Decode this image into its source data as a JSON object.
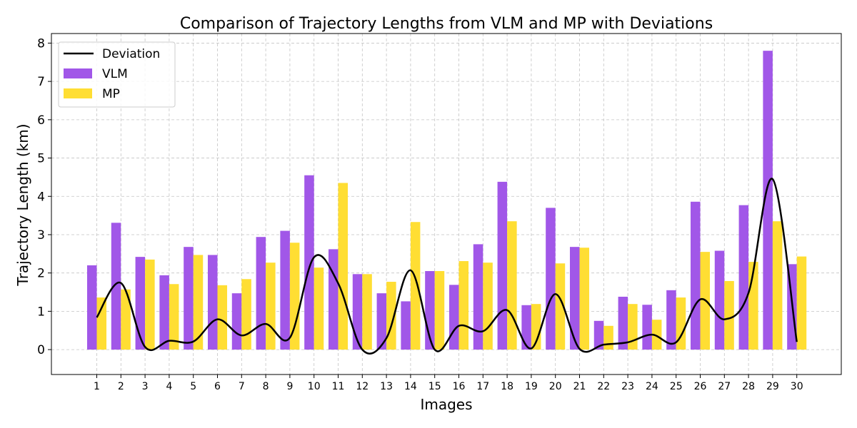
{
  "chart_data": {
    "type": "bar",
    "title": "Comparison of Trajectory Lengths from VLM and MP with Deviations",
    "xlabel": "Images",
    "ylabel": "Trajectory Length (km)",
    "categories": [
      "1",
      "2",
      "3",
      "4",
      "5",
      "6",
      "7",
      "8",
      "9",
      "10",
      "11",
      "12",
      "13",
      "14",
      "15",
      "16",
      "17",
      "18",
      "19",
      "20",
      "21",
      "22",
      "23",
      "24",
      "25",
      "26",
      "27",
      "28",
      "29",
      "30"
    ],
    "yticks": [
      "0",
      "1",
      "2",
      "3",
      "4",
      "5",
      "6",
      "7",
      "8"
    ],
    "ylim": [
      -0.65,
      8.25
    ],
    "grid": true,
    "legend_position": "top-left",
    "series": [
      {
        "name": "VLM",
        "kind": "bar",
        "color": "#a157e8",
        "values": [
          2.2,
          3.31,
          2.42,
          1.94,
          2.68,
          2.47,
          1.47,
          2.94,
          3.1,
          4.55,
          2.62,
          1.97,
          1.47,
          1.26,
          2.05,
          1.69,
          2.75,
          4.38,
          1.16,
          3.7,
          2.68,
          0.75,
          1.38,
          1.17,
          1.55,
          3.86,
          2.58,
          3.77,
          7.8,
          2.23
        ]
      },
      {
        "name": "MP",
        "kind": "bar",
        "color": "#ffde33",
        "values": [
          1.36,
          1.57,
          2.35,
          1.71,
          2.47,
          1.68,
          1.84,
          2.27,
          2.79,
          2.14,
          4.35,
          1.97,
          1.77,
          3.33,
          2.05,
          2.31,
          2.27,
          3.35,
          1.19,
          2.25,
          2.66,
          0.62,
          1.19,
          0.78,
          1.36,
          2.55,
          1.79,
          2.29,
          3.35,
          2.43
        ]
      },
      {
        "name": "Deviation",
        "kind": "line",
        "color": "#000000",
        "values": [
          0.84,
          1.74,
          0.07,
          0.23,
          0.21,
          0.79,
          0.37,
          0.67,
          0.31,
          2.41,
          1.73,
          0.0,
          0.3,
          2.07,
          0.0,
          0.62,
          0.48,
          1.03,
          0.03,
          1.45,
          0.02,
          0.13,
          0.19,
          0.39,
          0.19,
          1.31,
          0.79,
          1.48,
          4.45,
          0.2
        ]
      }
    ]
  }
}
